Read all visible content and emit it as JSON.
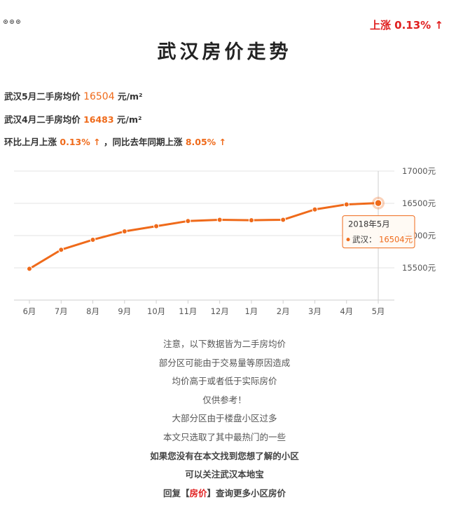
{
  "header": {
    "rise_label": "上涨 0.13% ↑",
    "title": "武汉房价走势"
  },
  "stats": {
    "may_label": "武汉5月二手房均价",
    "may_value": "16504",
    "may_unit": "元/m²",
    "apr_label": "武汉4月二手房均价",
    "apr_value": "16483",
    "apr_unit": "元/m²",
    "mom_label": "环比上月上涨",
    "mom_value": "0.13% ↑",
    "yoy_label": "，同比去年同期上涨",
    "yoy_value": "8.05% ↑"
  },
  "chart_data": {
    "type": "line",
    "categories": [
      "6月",
      "7月",
      "8月",
      "9月",
      "10月",
      "11月",
      "12月",
      "1月",
      "2月",
      "3月",
      "4月",
      "5月"
    ],
    "series": [
      {
        "name": "武汉",
        "values": [
          15485,
          15780,
          15935,
          16065,
          16145,
          16225,
          16245,
          16238,
          16245,
          16405,
          16483,
          16504
        ]
      }
    ],
    "yticks": [
      "17000元",
      "16500元",
      "16000元",
      "15500元"
    ],
    "ytick_values": [
      17000,
      16500,
      16000,
      15500
    ],
    "ylim": [
      15000,
      17000
    ],
    "grid": true,
    "color": "#ef6a1a",
    "tooltip": {
      "title": "2018年5月",
      "series": "武汉：",
      "value": "16504元"
    }
  },
  "notes": [
    {
      "text": "注意，以下数据皆为二手房均价"
    },
    {
      "text": "部分区可能由于交易量等原因造成"
    },
    {
      "text": "均价高于或者低于实际房价"
    },
    {
      "text": "仅供参考！"
    },
    {
      "text": "大部分区由于楼盘小区过多"
    },
    {
      "text": "本文只选取了其中最热门的一些"
    },
    {
      "text": "如果您没有在本文找到您想了解的小区"
    },
    {
      "text": "可以关注武汉本地宝"
    }
  ],
  "reply": {
    "prefix": "回复【",
    "keyword": "房价",
    "suffix": "】查询更多小区房价"
  }
}
